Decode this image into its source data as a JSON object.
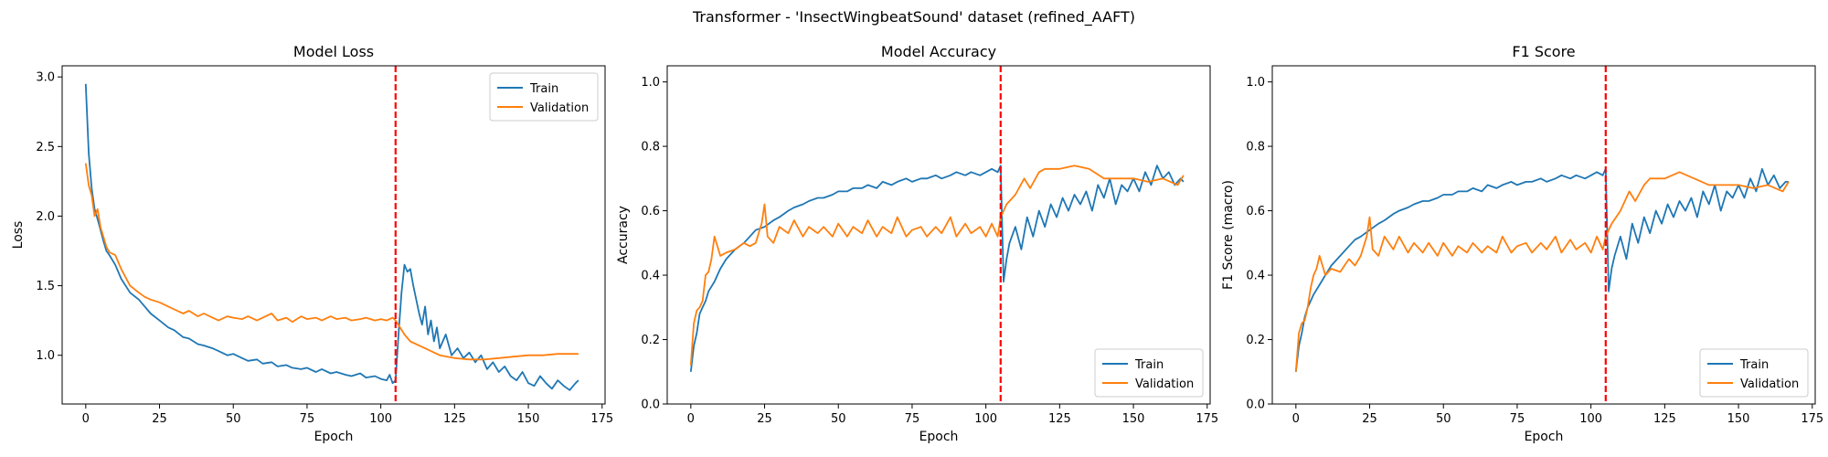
{
  "figure": {
    "suptitle": "Transformer - 'InsectWingbeatSound' dataset (refined_AAFT)"
  },
  "colors": {
    "train": "#1f77b4",
    "validation": "#ff7f0e",
    "marker": "#ff0000"
  },
  "chart_data": [
    {
      "type": "line",
      "title": "Model Loss",
      "xlabel": "Epoch",
      "ylabel": "Loss",
      "xlim": [
        -8,
        176
      ],
      "ylim": [
        0.65,
        3.08
      ],
      "xticks": [
        0,
        25,
        50,
        75,
        100,
        125,
        150,
        175
      ],
      "yticks": [
        1.0,
        1.5,
        2.0,
        2.5,
        3.0
      ],
      "ytick_labels": [
        "1.0",
        "1.5",
        "2.0",
        "2.5",
        "3.0"
      ],
      "grid": false,
      "legend": "upper right",
      "vline": 105,
      "series": [
        {
          "name": "Train",
          "x": [
            0,
            1,
            2,
            3,
            4,
            5,
            6,
            7,
            8,
            10,
            12,
            15,
            18,
            20,
            22,
            25,
            28,
            30,
            33,
            35,
            38,
            40,
            43,
            45,
            48,
            50,
            53,
            55,
            58,
            60,
            63,
            65,
            68,
            70,
            73,
            75,
            78,
            80,
            83,
            85,
            88,
            90,
            93,
            95,
            98,
            100,
            102,
            103,
            104,
            105,
            106,
            107,
            108,
            109,
            110,
            111,
            112,
            113,
            114,
            115,
            116,
            117,
            118,
            119,
            120,
            122,
            124,
            126,
            128,
            130,
            132,
            134,
            136,
            138,
            140,
            142,
            144,
            146,
            148,
            150,
            152,
            154,
            156,
            158,
            160,
            162,
            164,
            166,
            167
          ],
          "values": [
            2.95,
            2.45,
            2.2,
            2.05,
            1.98,
            1.9,
            1.82,
            1.75,
            1.72,
            1.65,
            1.55,
            1.45,
            1.4,
            1.35,
            1.3,
            1.25,
            1.2,
            1.18,
            1.13,
            1.12,
            1.08,
            1.07,
            1.05,
            1.03,
            1.0,
            1.01,
            0.98,
            0.96,
            0.97,
            0.94,
            0.95,
            0.92,
            0.93,
            0.91,
            0.9,
            0.91,
            0.88,
            0.9,
            0.87,
            0.88,
            0.86,
            0.85,
            0.87,
            0.84,
            0.85,
            0.83,
            0.82,
            0.86,
            0.8,
            0.82,
            1.15,
            1.45,
            1.65,
            1.6,
            1.62,
            1.5,
            1.4,
            1.3,
            1.22,
            1.35,
            1.15,
            1.25,
            1.1,
            1.2,
            1.05,
            1.15,
            1.0,
            1.05,
            0.98,
            1.02,
            0.95,
            1.0,
            0.9,
            0.95,
            0.88,
            0.92,
            0.85,
            0.82,
            0.88,
            0.8,
            0.78,
            0.85,
            0.8,
            0.76,
            0.82,
            0.78,
            0.75,
            0.8,
            0.82
          ]
        },
        {
          "name": "Validation",
          "x": [
            0,
            1,
            2,
            3,
            4,
            5,
            6,
            7,
            8,
            10,
            12,
            15,
            18,
            20,
            22,
            25,
            28,
            30,
            33,
            35,
            38,
            40,
            43,
            45,
            48,
            50,
            53,
            55,
            58,
            60,
            63,
            65,
            68,
            70,
            73,
            75,
            78,
            80,
            83,
            85,
            88,
            90,
            93,
            95,
            98,
            100,
            102,
            104,
            105,
            108,
            110,
            115,
            120,
            125,
            130,
            135,
            140,
            145,
            150,
            155,
            160,
            165,
            167
          ],
          "values": [
            2.38,
            2.22,
            2.15,
            2.0,
            2.05,
            1.92,
            1.85,
            1.78,
            1.74,
            1.72,
            1.62,
            1.5,
            1.45,
            1.42,
            1.4,
            1.38,
            1.35,
            1.33,
            1.3,
            1.32,
            1.28,
            1.3,
            1.27,
            1.25,
            1.28,
            1.27,
            1.26,
            1.28,
            1.25,
            1.27,
            1.3,
            1.25,
            1.27,
            1.24,
            1.28,
            1.26,
            1.27,
            1.25,
            1.28,
            1.26,
            1.27,
            1.25,
            1.26,
            1.27,
            1.25,
            1.26,
            1.25,
            1.27,
            1.25,
            1.15,
            1.1,
            1.05,
            1.0,
            0.98,
            0.97,
            0.97,
            0.98,
            0.99,
            1.0,
            1.0,
            1.01,
            1.01,
            1.01
          ]
        }
      ]
    },
    {
      "type": "line",
      "title": "Model Accuracy",
      "xlabel": "Epoch",
      "ylabel": "Accuracy",
      "xlim": [
        -8,
        176
      ],
      "ylim": [
        0.0,
        1.05
      ],
      "xticks": [
        0,
        25,
        50,
        75,
        100,
        125,
        150,
        175
      ],
      "yticks": [
        0.0,
        0.2,
        0.4,
        0.6,
        0.8,
        1.0
      ],
      "ytick_labels": [
        "0.0",
        "0.2",
        "0.4",
        "0.6",
        "0.8",
        "1.0"
      ],
      "grid": false,
      "legend": "lower right",
      "vline": 105,
      "series": [
        {
          "name": "Train",
          "x": [
            0,
            1,
            2,
            3,
            4,
            5,
            6,
            8,
            10,
            12,
            15,
            18,
            20,
            22,
            25,
            28,
            30,
            33,
            35,
            38,
            40,
            43,
            45,
            48,
            50,
            53,
            55,
            58,
            60,
            63,
            65,
            68,
            70,
            73,
            75,
            78,
            80,
            83,
            85,
            88,
            90,
            93,
            95,
            98,
            100,
            102,
            104,
            105,
            106,
            107,
            108,
            110,
            112,
            114,
            116,
            118,
            120,
            122,
            124,
            126,
            128,
            130,
            132,
            134,
            136,
            138,
            140,
            142,
            144,
            146,
            148,
            150,
            152,
            154,
            156,
            158,
            160,
            162,
            164,
            166,
            167
          ],
          "values": [
            0.1,
            0.18,
            0.22,
            0.28,
            0.3,
            0.32,
            0.35,
            0.38,
            0.42,
            0.45,
            0.48,
            0.5,
            0.52,
            0.54,
            0.55,
            0.57,
            0.58,
            0.6,
            0.61,
            0.62,
            0.63,
            0.64,
            0.64,
            0.65,
            0.66,
            0.66,
            0.67,
            0.67,
            0.68,
            0.67,
            0.69,
            0.68,
            0.69,
            0.7,
            0.69,
            0.7,
            0.7,
            0.71,
            0.7,
            0.71,
            0.72,
            0.71,
            0.72,
            0.71,
            0.72,
            0.73,
            0.72,
            0.74,
            0.38,
            0.45,
            0.5,
            0.55,
            0.48,
            0.58,
            0.52,
            0.6,
            0.55,
            0.62,
            0.58,
            0.64,
            0.6,
            0.65,
            0.62,
            0.66,
            0.6,
            0.68,
            0.64,
            0.7,
            0.62,
            0.68,
            0.66,
            0.7,
            0.66,
            0.72,
            0.68,
            0.74,
            0.7,
            0.72,
            0.68,
            0.7,
            0.69
          ]
        },
        {
          "name": "Validation",
          "x": [
            0,
            1,
            2,
            3,
            4,
            5,
            6,
            7,
            8,
            10,
            12,
            15,
            18,
            20,
            22,
            24,
            25,
            26,
            28,
            30,
            33,
            35,
            38,
            40,
            43,
            45,
            48,
            50,
            53,
            55,
            58,
            60,
            63,
            65,
            68,
            70,
            73,
            75,
            78,
            80,
            83,
            85,
            88,
            90,
            93,
            95,
            98,
            100,
            102,
            104,
            105,
            107,
            110,
            113,
            115,
            118,
            120,
            125,
            130,
            135,
            140,
            145,
            150,
            155,
            160,
            165,
            167
          ],
          "values": [
            0.12,
            0.25,
            0.29,
            0.3,
            0.32,
            0.4,
            0.41,
            0.45,
            0.52,
            0.46,
            0.47,
            0.48,
            0.5,
            0.49,
            0.5,
            0.56,
            0.62,
            0.52,
            0.5,
            0.55,
            0.53,
            0.57,
            0.52,
            0.55,
            0.53,
            0.55,
            0.52,
            0.56,
            0.52,
            0.55,
            0.53,
            0.57,
            0.52,
            0.55,
            0.53,
            0.58,
            0.52,
            0.54,
            0.55,
            0.52,
            0.55,
            0.53,
            0.58,
            0.52,
            0.56,
            0.53,
            0.55,
            0.52,
            0.56,
            0.52,
            0.58,
            0.62,
            0.65,
            0.7,
            0.67,
            0.72,
            0.73,
            0.73,
            0.74,
            0.73,
            0.7,
            0.7,
            0.7,
            0.69,
            0.7,
            0.68,
            0.71
          ]
        }
      ]
    },
    {
      "type": "line",
      "title": "F1 Score",
      "xlabel": "Epoch",
      "ylabel": "F1 Score (macro)",
      "xlim": [
        -8,
        176
      ],
      "ylim": [
        0.0,
        1.05
      ],
      "xticks": [
        0,
        25,
        50,
        75,
        100,
        125,
        150,
        175
      ],
      "yticks": [
        0.0,
        0.2,
        0.4,
        0.6,
        0.8,
        1.0
      ],
      "ytick_labels": [
        "0.0",
        "0.2",
        "0.4",
        "0.6",
        "0.8",
        "1.0"
      ],
      "grid": false,
      "legend": "lower right",
      "vline": 105,
      "series": [
        {
          "name": "Train",
          "x": [
            0,
            1,
            2,
            3,
            4,
            5,
            6,
            8,
            10,
            12,
            15,
            18,
            20,
            22,
            25,
            28,
            30,
            33,
            35,
            38,
            40,
            43,
            45,
            48,
            50,
            53,
            55,
            58,
            60,
            63,
            65,
            68,
            70,
            73,
            75,
            78,
            80,
            83,
            85,
            88,
            90,
            93,
            95,
            98,
            100,
            102,
            104,
            105,
            106,
            107,
            108,
            110,
            112,
            114,
            116,
            118,
            120,
            122,
            124,
            126,
            128,
            130,
            132,
            134,
            136,
            138,
            140,
            142,
            144,
            146,
            148,
            150,
            152,
            154,
            156,
            158,
            160,
            162,
            164,
            166,
            167
          ],
          "values": [
            0.1,
            0.18,
            0.22,
            0.27,
            0.3,
            0.32,
            0.34,
            0.37,
            0.4,
            0.43,
            0.46,
            0.49,
            0.51,
            0.52,
            0.54,
            0.56,
            0.57,
            0.59,
            0.6,
            0.61,
            0.62,
            0.63,
            0.63,
            0.64,
            0.65,
            0.65,
            0.66,
            0.66,
            0.67,
            0.66,
            0.68,
            0.67,
            0.68,
            0.69,
            0.68,
            0.69,
            0.69,
            0.7,
            0.69,
            0.7,
            0.71,
            0.7,
            0.71,
            0.7,
            0.71,
            0.72,
            0.71,
            0.73,
            0.35,
            0.42,
            0.46,
            0.52,
            0.45,
            0.56,
            0.5,
            0.58,
            0.53,
            0.6,
            0.56,
            0.62,
            0.58,
            0.63,
            0.6,
            0.64,
            0.58,
            0.66,
            0.62,
            0.68,
            0.6,
            0.66,
            0.64,
            0.68,
            0.64,
            0.7,
            0.66,
            0.73,
            0.68,
            0.71,
            0.67,
            0.69,
            0.69
          ]
        },
        {
          "name": "Validation",
          "x": [
            0,
            1,
            2,
            3,
            4,
            5,
            6,
            7,
            8,
            10,
            12,
            15,
            18,
            20,
            22,
            24,
            25,
            26,
            28,
            30,
            33,
            35,
            38,
            40,
            43,
            45,
            48,
            50,
            53,
            55,
            58,
            60,
            63,
            65,
            68,
            70,
            73,
            75,
            78,
            80,
            83,
            85,
            88,
            90,
            93,
            95,
            98,
            100,
            102,
            104,
            105,
            107,
            110,
            113,
            115,
            118,
            120,
            125,
            130,
            135,
            140,
            145,
            150,
            155,
            160,
            165,
            167
          ],
          "values": [
            0.1,
            0.22,
            0.25,
            0.26,
            0.3,
            0.36,
            0.4,
            0.42,
            0.46,
            0.4,
            0.42,
            0.41,
            0.45,
            0.43,
            0.46,
            0.52,
            0.58,
            0.48,
            0.46,
            0.52,
            0.48,
            0.52,
            0.47,
            0.5,
            0.47,
            0.5,
            0.46,
            0.5,
            0.46,
            0.49,
            0.47,
            0.5,
            0.47,
            0.49,
            0.47,
            0.52,
            0.47,
            0.49,
            0.5,
            0.47,
            0.5,
            0.48,
            0.52,
            0.47,
            0.51,
            0.48,
            0.5,
            0.47,
            0.52,
            0.48,
            0.52,
            0.56,
            0.6,
            0.66,
            0.63,
            0.68,
            0.7,
            0.7,
            0.72,
            0.7,
            0.68,
            0.68,
            0.68,
            0.67,
            0.68,
            0.66,
            0.69
          ]
        }
      ]
    }
  ]
}
